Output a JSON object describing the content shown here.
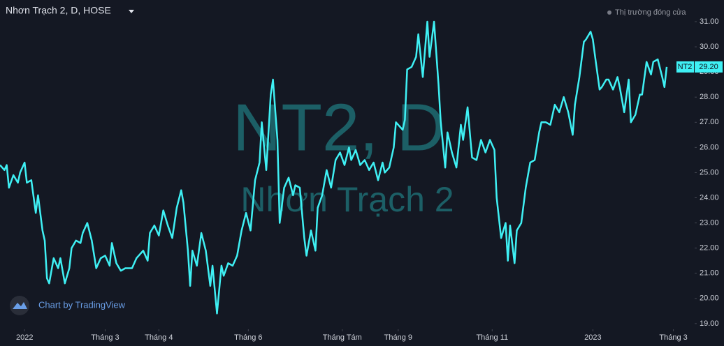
{
  "header": {
    "title": "Nhơn Trạch 2, D, HOSE",
    "status": "Thị trường đóng cửa",
    "branding": "Chart by TradingView"
  },
  "watermark": {
    "symbol": "NT2, D",
    "name": "Nhơn Trạch 2"
  },
  "chart_data": {
    "type": "line",
    "series": [
      {
        "name": "NT2",
        "color": "#3ff0f4",
        "x": [
          0,
          2,
          3,
          4,
          6,
          8,
          9,
          11,
          12,
          14,
          16,
          17,
          19,
          20,
          21,
          22,
          24,
          26,
          27,
          29,
          31,
          32,
          34,
          36,
          37,
          39,
          41,
          43,
          45,
          47,
          49,
          50,
          52,
          54,
          56,
          59,
          61,
          64,
          66,
          67,
          69,
          71,
          73,
          75,
          77,
          79,
          81,
          82,
          84,
          85,
          86,
          88,
          90,
          92,
          94,
          95,
          97,
          99,
          100,
          102,
          104,
          106,
          108,
          110,
          112,
          114,
          116,
          117,
          119,
          121,
          122,
          124,
          125,
          127,
          129,
          131,
          132,
          134,
          136,
          137,
          139,
          141,
          142,
          144,
          146,
          148,
          150,
          152,
          154,
          156,
          157,
          159,
          161,
          163,
          165,
          167,
          169,
          171,
          172,
          174,
          176,
          177,
          180,
          181,
          182,
          184,
          186,
          187,
          189,
          191,
          192,
          194,
          196,
          197,
          199,
          200,
          202,
          204,
          206,
          207,
          209,
          211,
          213,
          215,
          217,
          219,
          221,
          222,
          224,
          226,
          227,
          228,
          230,
          231,
          233,
          235,
          237,
          239,
          241,
          242,
          244,
          246,
          248,
          250,
          252,
          254,
          256,
          257,
          259,
          261,
          262,
          264,
          265,
          266,
          268,
          269,
          271,
          272,
          274,
          276,
          277,
          279,
          281,
          282,
          284,
          286,
          287,
          289,
          291,
          292,
          294,
          296,
          297,
          298
        ],
        "values": [
          25.3,
          25.1,
          25.3,
          24.4,
          24.9,
          24.6,
          25.0,
          25.4,
          24.6,
          24.7,
          23.4,
          24.1,
          22.7,
          22.3,
          20.8,
          20.6,
          21.6,
          21.2,
          21.6,
          20.6,
          21.2,
          22.0,
          22.3,
          22.2,
          22.6,
          23.0,
          22.3,
          21.2,
          21.6,
          21.7,
          21.3,
          22.2,
          21.4,
          21.1,
          21.2,
          21.2,
          21.6,
          21.9,
          21.5,
          22.6,
          22.9,
          22.5,
          23.5,
          22.9,
          22.4,
          23.6,
          24.3,
          23.8,
          21.9,
          20.5,
          21.9,
          21.3,
          22.6,
          21.9,
          20.5,
          21.3,
          19.4,
          21.3,
          20.9,
          21.4,
          21.3,
          21.7,
          22.7,
          23.4,
          22.7,
          24.7,
          25.4,
          27.0,
          25.1,
          28.1,
          28.7,
          26.3,
          23.0,
          24.4,
          24.8,
          24.1,
          24.5,
          24.4,
          22.4,
          21.7,
          22.7,
          21.9,
          23.6,
          24.1,
          25.1,
          24.4,
          25.5,
          25.8,
          25.3,
          26.0,
          25.5,
          25.9,
          25.3,
          25.5,
          25.1,
          25.4,
          24.7,
          25.4,
          25.0,
          25.2,
          26.0,
          27.0,
          26.7,
          27.1,
          29.1,
          29.2,
          29.6,
          30.5,
          28.8,
          31.0,
          29.6,
          31.0,
          28.5,
          27.0,
          25.2,
          26.6,
          25.8,
          25.2,
          26.9,
          26.3,
          27.6,
          25.6,
          25.5,
          26.3,
          25.8,
          26.3,
          25.9,
          24.0,
          22.4,
          23.0,
          21.5,
          22.9,
          21.4,
          22.7,
          23.0,
          24.4,
          25.4,
          25.5,
          26.6,
          27.0,
          27.0,
          26.9,
          27.7,
          27.4,
          28.0,
          27.4,
          26.5,
          27.7,
          28.8,
          30.2,
          30.3,
          30.6,
          30.3,
          29.6,
          28.3,
          28.4,
          28.7,
          28.7,
          28.3,
          28.8,
          28.4,
          27.4,
          28.7,
          27.0,
          27.3,
          28.1,
          28.1,
          29.4,
          28.9,
          29.4,
          29.5,
          28.8,
          28.4,
          29.2
        ]
      }
    ],
    "last_price": {
      "value": 29.2,
      "label": "29.20"
    },
    "xlim": [
      0,
      303
    ],
    "xticks": [
      {
        "value": 11,
        "label": "2022"
      },
      {
        "value": 47,
        "label": "Tháng 3"
      },
      {
        "value": 71,
        "label": "Tháng 4"
      },
      {
        "value": 111,
        "label": "Tháng 6"
      },
      {
        "value": 153,
        "label": "Tháng Tám"
      },
      {
        "value": 178,
        "label": "Tháng 9"
      },
      {
        "value": 220,
        "label": "Tháng 11"
      },
      {
        "value": 265,
        "label": "2023"
      },
      {
        "value": 301,
        "label": "Tháng 3"
      }
    ],
    "ylim": [
      18.83,
      31.86
    ],
    "yticks": [
      {
        "value": 19,
        "label": "19.00"
      },
      {
        "value": 20,
        "label": "20.00"
      },
      {
        "value": 21,
        "label": "21.00"
      },
      {
        "value": 22,
        "label": "22.00"
      },
      {
        "value": 23,
        "label": "23.00"
      },
      {
        "value": 24,
        "label": "24.00"
      },
      {
        "value": 25,
        "label": "25.00"
      },
      {
        "value": 26,
        "label": "26.00"
      },
      {
        "value": 27,
        "label": "27.00"
      },
      {
        "value": 28,
        "label": "28.00"
      },
      {
        "value": 29,
        "label": "29.00"
      },
      {
        "value": 30,
        "label": "30.00"
      },
      {
        "value": 31,
        "label": "31.00"
      }
    ],
    "grid": false
  }
}
